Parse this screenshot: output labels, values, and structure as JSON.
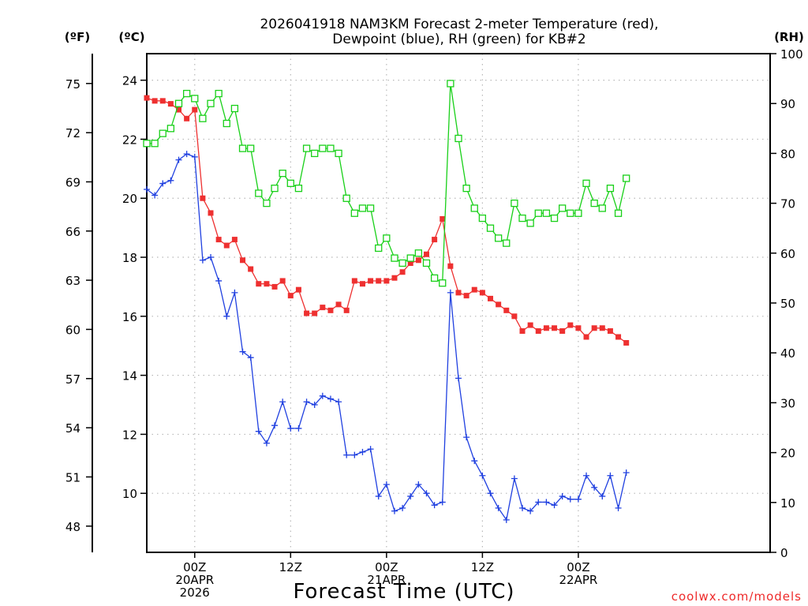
{
  "chart_data": {
    "type": "line",
    "title_line1": "2026041918 NAM3KM Forecast 2-meter Temperature (red),",
    "title_line2": "Dewpoint (blue), RH (green) for KB#2",
    "xlabel": "Forecast Time (UTC)",
    "credit": "coolwx.com/models",
    "units": {
      "fahrenheit": "(ºF)",
      "celsius": "(ºC)",
      "rh": "(RH)"
    },
    "x_range_hours": [
      0,
      78
    ],
    "celsius_range": [
      8,
      24.9
    ],
    "rh_range": [
      0,
      100
    ],
    "fahrenheit_ticks": [
      48,
      51,
      54,
      57,
      60,
      63,
      66,
      69,
      72,
      75
    ],
    "celsius_ticks": [
      10,
      12,
      14,
      16,
      18,
      20,
      22,
      24
    ],
    "rh_ticks": [
      0,
      10,
      20,
      30,
      40,
      50,
      60,
      70,
      80,
      90,
      100
    ],
    "x_ticks": [
      {
        "hour": 6,
        "lines": [
          "00Z",
          "20APR",
          "2026"
        ]
      },
      {
        "hour": 18,
        "lines": [
          "12Z"
        ]
      },
      {
        "hour": 30,
        "lines": [
          "00Z",
          "21APR"
        ]
      },
      {
        "hour": 42,
        "lines": [
          "12Z"
        ]
      },
      {
        "hour": 54,
        "lines": [
          "00Z",
          "22APR"
        ]
      }
    ],
    "series": [
      {
        "name": "Temperature",
        "unit": "C",
        "color": "#ee3030",
        "marker": "filled-square",
        "values": [
          23.4,
          23.3,
          23.3,
          23.2,
          23.0,
          22.7,
          23.0,
          20.0,
          19.5,
          18.6,
          18.4,
          18.6,
          17.9,
          17.6,
          17.1,
          17.1,
          17.0,
          17.2,
          16.7,
          16.9,
          16.1,
          16.1,
          16.3,
          16.2,
          16.4,
          16.2,
          17.2,
          17.1,
          17.2,
          17.2,
          17.2,
          17.3,
          17.5,
          17.8,
          17.9,
          18.1,
          18.6,
          19.3,
          17.7,
          16.8,
          16.7,
          16.9,
          16.8,
          16.6,
          16.4,
          16.2,
          16.0,
          15.5,
          15.7,
          15.5,
          15.6,
          15.6,
          15.5,
          15.7,
          15.6,
          15.3,
          15.6,
          15.6,
          15.5,
          15.3,
          15.1
        ]
      },
      {
        "name": "Dewpoint",
        "unit": "C",
        "color": "#2040e0",
        "marker": "plus",
        "values": [
          20.3,
          20.1,
          20.5,
          20.6,
          21.3,
          21.5,
          21.4,
          17.9,
          18.0,
          17.2,
          16.0,
          16.8,
          14.8,
          14.6,
          12.1,
          11.7,
          12.3,
          13.1,
          12.2,
          12.2,
          13.1,
          13.0,
          13.3,
          13.2,
          13.1,
          11.3,
          11.3,
          11.4,
          11.5,
          9.9,
          10.3,
          9.4,
          9.5,
          9.9,
          10.3,
          10.0,
          9.6,
          9.7,
          16.8,
          13.9,
          11.9,
          11.1,
          10.6,
          10.0,
          9.5,
          9.1,
          10.5,
          9.5,
          9.4,
          9.7,
          9.7,
          9.6,
          9.9,
          9.8,
          9.8,
          10.6,
          10.2,
          9.9,
          10.6,
          9.5,
          10.7
        ]
      },
      {
        "name": "RH",
        "unit": "%",
        "color": "#18d018",
        "marker": "open-square",
        "values": [
          82,
          82,
          84,
          85,
          90,
          92,
          91,
          87,
          90,
          92,
          86,
          89,
          81,
          81,
          72,
          70,
          73,
          76,
          74,
          73,
          81,
          80,
          81,
          81,
          80,
          71,
          68,
          69,
          69,
          61,
          63,
          59,
          58,
          59,
          60,
          58,
          55,
          54,
          94,
          83,
          73,
          69,
          67,
          65,
          63,
          62,
          70,
          67,
          66,
          68,
          68,
          67,
          69,
          68,
          68,
          74,
          70,
          69,
          73,
          68,
          75
        ]
      }
    ]
  }
}
